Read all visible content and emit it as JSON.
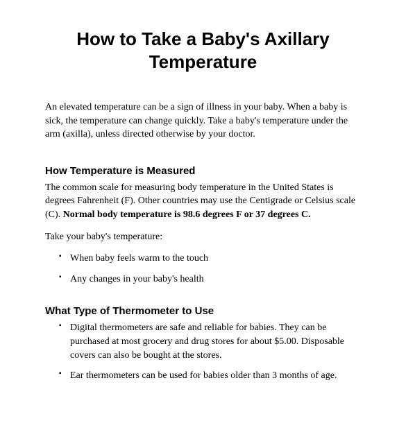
{
  "title": "How to Take a Baby's Axillary Temperature",
  "intro": "An elevated temperature can be a sign of illness in your baby. When a baby is sick, the temperature can change quickly. Take a baby's temperature under the arm (axilla), unless directed otherwise by your doctor.",
  "section1": {
    "heading": "How Temperature is Measured",
    "para_plain": "The common scale for measuring body temperature in the United States is degrees Fahrenheit (F). Other countries may use the Centigrade or Celsius scale (C). ",
    "para_bold": "Normal body temperature is 98.6 degrees F or 37 degrees C.",
    "lead_in": "Take your baby's temperature:",
    "bullets": [
      "When baby feels warm to the touch",
      "Any changes in your baby's health"
    ]
  },
  "section2": {
    "heading": "What Type of Thermometer to Use",
    "bullets": [
      "Digital thermometers are safe and reliable for babies. They can be purchased at most grocery and drug stores for about $5.00. Disposable covers can also be bought at the stores.",
      "Ear thermometers can be used for babies older than 3 months of age."
    ]
  },
  "style": {
    "title_fontsize": 26,
    "heading_fontsize": 15,
    "body_fontsize": 14,
    "title_font": "Arial",
    "body_font": "Times New Roman",
    "text_color": "#000000",
    "background_color": "#ffffff"
  }
}
